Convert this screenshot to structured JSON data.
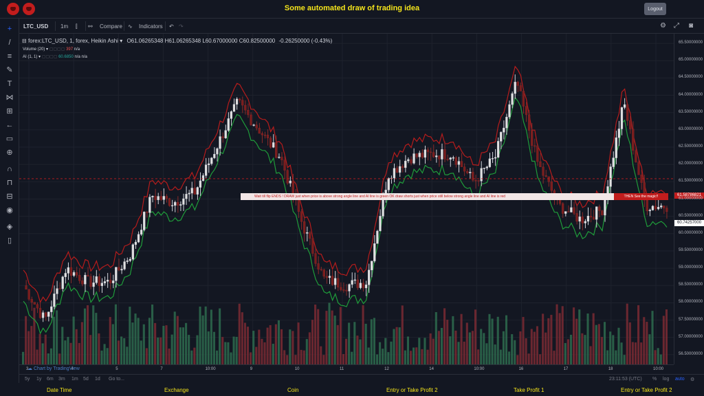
{
  "header": {
    "title": "Some automated draw of trading idea",
    "logout_label": "Logout"
  },
  "toolbar": {
    "symbol": "LTC_USD",
    "interval": "1m",
    "compare_label": "Compare",
    "indicators_label": "Indicators"
  },
  "legend": {
    "series_title": "forex:LTC_USD, 1, forex, Heikin Ashi",
    "open": "O61.06265348",
    "high": "H61.06265348",
    "low": "L60.67000000",
    "close": "C60.82500000",
    "change": "-0.26250000 (-0.43%)",
    "volume_label": "Volume (20)",
    "volume_value": "397",
    "volume_na": "n/a",
    "ai_label": "AI (1, 1)",
    "ai_value": "60.6850",
    "ai_na1": "n/a",
    "ai_na2": "n/a"
  },
  "banner": {
    "text": "Wait till flip ENDS !   DRAW just when  price is above strong angle line and AI line is green      OK       draw shorts just when price still below strong angle line and AI line is red",
    "end_text": "THEN See the magic!!"
  },
  "price_scale": {
    "ticks": [
      "65.50000000",
      "65.00000000",
      "64.50000000",
      "64.00000000",
      "63.50000000",
      "63.00000000",
      "62.50000000",
      "62.00000000",
      "61.50000000",
      "61.00000000",
      "60.50000000",
      "60.00000000",
      "59.50000000",
      "59.00000000",
      "58.50000000",
      "58.00000000",
      "57.50000000",
      "57.00000000",
      "56.50000000"
    ],
    "red_tag": "61.58786821",
    "white_tag": "60.74257000"
  },
  "time_scale": {
    "ticks": [
      "3",
      "4",
      "5",
      "7",
      "10:00",
      "9",
      "10",
      "11",
      "12",
      "14",
      "10:00",
      "16",
      "17",
      "18",
      "10:00"
    ]
  },
  "bottom_bar": {
    "ranges": [
      "5y",
      "1y",
      "6m",
      "3m",
      "1m",
      "5d",
      "1d"
    ],
    "goto_label": "Go to...",
    "clock": "23:11:53 (UTC)",
    "percent": "%",
    "log": "log",
    "auto": "auto"
  },
  "watermark": "Chart by TradingView",
  "footer": {
    "items": [
      "Date Time",
      "Exchange",
      "Coin",
      "Entry or Take Profit 2",
      "Take Profit 1",
      "Entry or Take Profit 2"
    ]
  },
  "chart_data": {
    "type": "line",
    "title": "",
    "x": [
      0,
      1,
      2,
      3,
      4,
      5,
      6,
      7,
      8,
      9,
      10,
      11,
      12,
      13,
      14,
      15,
      16,
      17,
      18,
      19,
      20,
      21,
      22,
      23,
      24,
      25,
      26,
      27,
      28,
      29,
      30
    ],
    "series": [
      {
        "values": [
          58.5,
          57.5,
          59.0,
          58.6,
          58.6,
          59.4,
          61.1,
          60.9,
          61.2,
          62.5,
          63.8,
          63.0,
          62.2,
          60.3,
          58.7,
          58.5,
          58.6,
          61.7,
          62.2,
          62.3,
          62.3,
          61.5,
          62.2,
          64.4,
          62.0,
          60.8,
          60.4,
          60.7,
          63.8,
          60.8,
          60.8
        ]
      }
    ],
    "colors": {
      "up": "#e0e0e0",
      "down": "#7b1d1d",
      "ai_up": "#1f9c3a",
      "ai_down": "#b71c1c",
      "vol_up": "#2e6b4e",
      "vol_down": "#7a2a33"
    },
    "ylim": [
      56.3,
      65.7
    ]
  }
}
